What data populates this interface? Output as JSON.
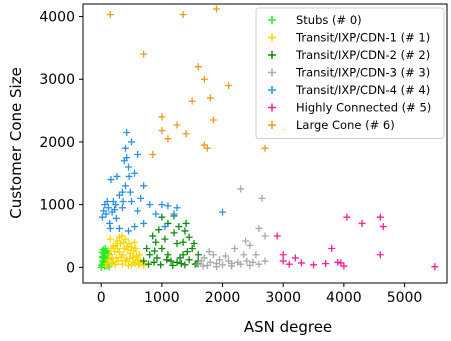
{
  "chart_data": {
    "type": "scatter",
    "xlabel": "ASN degree",
    "ylabel": "Customer Cone Size",
    "xlim": [
      -300,
      5700
    ],
    "ylim": [
      -250,
      4200
    ],
    "xticks": [
      0,
      1000,
      2000,
      3000,
      4000,
      5000
    ],
    "yticks": [
      0,
      1000,
      2000,
      3000,
      4000
    ],
    "legend_position": "top-right",
    "marker": "plus",
    "series": [
      {
        "name": "Stubs (# 0)",
        "color": "#22ee22",
        "points": [
          [
            0,
            0
          ],
          [
            10,
            30
          ],
          [
            20,
            50
          ],
          [
            25,
            100
          ],
          [
            30,
            150
          ],
          [
            40,
            80
          ],
          [
            50,
            200
          ],
          [
            60,
            120
          ],
          [
            70,
            40
          ],
          [
            80,
            250
          ],
          [
            90,
            180
          ],
          [
            100,
            60
          ],
          [
            110,
            130
          ],
          [
            120,
            220
          ],
          [
            130,
            10
          ],
          [
            20,
            170
          ],
          [
            45,
            230
          ],
          [
            75,
            90
          ],
          [
            95,
            20
          ],
          [
            105,
            260
          ],
          [
            35,
            280
          ],
          [
            65,
            300
          ],
          [
            15,
            240
          ],
          [
            55,
            20
          ],
          [
            85,
            140
          ]
        ]
      },
      {
        "name": "Transit/IXP/CDN-1 (# 1)",
        "color": "#ffd500",
        "points": [
          [
            80,
            20
          ],
          [
            100,
            60
          ],
          [
            120,
            120
          ],
          [
            140,
            200
          ],
          [
            160,
            300
          ],
          [
            180,
            150
          ],
          [
            200,
            80
          ],
          [
            220,
            250
          ],
          [
            240,
            350
          ],
          [
            260,
            420
          ],
          [
            280,
            100
          ],
          [
            300,
            480
          ],
          [
            320,
            380
          ],
          [
            340,
            500
          ],
          [
            360,
            200
          ],
          [
            380,
            300
          ],
          [
            400,
            450
          ],
          [
            420,
            130
          ],
          [
            440,
            280
          ],
          [
            460,
            380
          ],
          [
            480,
            220
          ],
          [
            500,
            320
          ],
          [
            520,
            160
          ],
          [
            540,
            260
          ],
          [
            560,
            60
          ],
          [
            580,
            180
          ],
          [
            600,
            120
          ],
          [
            620,
            40
          ],
          [
            650,
            100
          ],
          [
            680,
            70
          ],
          [
            700,
            30
          ],
          [
            150,
            450
          ],
          [
            250,
            150
          ],
          [
            350,
            50
          ],
          [
            450,
            30
          ],
          [
            550,
            400
          ],
          [
            200,
            330
          ],
          [
            300,
            240
          ],
          [
            400,
            100
          ],
          [
            500,
            40
          ],
          [
            170,
            60
          ],
          [
            270,
            300
          ],
          [
            370,
            400
          ],
          [
            470,
            140
          ],
          [
            570,
            300
          ],
          [
            230,
            40
          ],
          [
            330,
            160
          ],
          [
            430,
            330
          ],
          [
            530,
            80
          ],
          [
            630,
            200
          ]
        ]
      },
      {
        "name": "Transit/IXP/CDN-2 (# 2)",
        "color": "#0f8a0f",
        "points": [
          [
            700,
            100
          ],
          [
            750,
            300
          ],
          [
            800,
            200
          ],
          [
            850,
            500
          ],
          [
            870,
            80
          ],
          [
            900,
            400
          ],
          [
            920,
            150
          ],
          [
            950,
            600
          ],
          [
            1000,
            300
          ],
          [
            1050,
            450
          ],
          [
            1100,
            200
          ],
          [
            1150,
            100
          ],
          [
            1200,
            550
          ],
          [
            1250,
            380
          ],
          [
            1300,
            150
          ],
          [
            1320,
            60
          ],
          [
            1350,
            400
          ],
          [
            1400,
            700
          ],
          [
            1420,
            250
          ],
          [
            1450,
            120
          ],
          [
            1500,
            300
          ],
          [
            1550,
            50
          ],
          [
            1600,
            200
          ],
          [
            1100,
            700
          ],
          [
            1000,
            800
          ],
          [
            1200,
            820
          ],
          [
            1280,
            650
          ],
          [
            1380,
            580
          ],
          [
            1450,
            480
          ],
          [
            1530,
            380
          ],
          [
            780,
            50
          ],
          [
            980,
            40
          ],
          [
            1180,
            30
          ],
          [
            1380,
            40
          ],
          [
            1580,
            60
          ],
          [
            1080,
            120
          ],
          [
            880,
            260
          ],
          [
            1250,
            80
          ],
          [
            1600,
            100
          ],
          [
            1350,
            200
          ]
        ]
      },
      {
        "name": "Transit/IXP/CDN-3 (# 3)",
        "color": "#aaaaaa",
        "points": [
          [
            1600,
            50
          ],
          [
            1650,
            100
          ],
          [
            1700,
            150
          ],
          [
            1750,
            30
          ],
          [
            1800,
            80
          ],
          [
            1850,
            200
          ],
          [
            1900,
            60
          ],
          [
            1950,
            120
          ],
          [
            2000,
            40
          ],
          [
            2100,
            100
          ],
          [
            2150,
            60
          ],
          [
            2200,
            300
          ],
          [
            2250,
            80
          ],
          [
            2300,
            50
          ],
          [
            2350,
            200
          ],
          [
            2400,
            100
          ],
          [
            2450,
            30
          ],
          [
            2500,
            80
          ],
          [
            2550,
            200
          ],
          [
            2600,
            50
          ],
          [
            2700,
            100
          ],
          [
            2300,
            1250
          ],
          [
            2650,
            1100
          ],
          [
            2600,
            620
          ],
          [
            2700,
            500
          ],
          [
            2450,
            350
          ],
          [
            1780,
            250
          ],
          [
            2050,
            180
          ],
          [
            2380,
            420
          ],
          [
            2150,
            20
          ],
          [
            1680,
            20
          ],
          [
            1900,
            10
          ]
        ]
      },
      {
        "name": "Transit/IXP/CDN-4 (# 4)",
        "color": "#2f8fe6",
        "points": [
          [
            20,
            800
          ],
          [
            40,
            900
          ],
          [
            60,
            1000
          ],
          [
            80,
            850
          ],
          [
            100,
            1050
          ],
          [
            120,
            950
          ],
          [
            140,
            700
          ],
          [
            160,
            1400
          ],
          [
            180,
            880
          ],
          [
            200,
            1050
          ],
          [
            220,
            920
          ],
          [
            240,
            1000
          ],
          [
            260,
            1450
          ],
          [
            300,
            1150
          ],
          [
            350,
            1200
          ],
          [
            400,
            1300
          ],
          [
            420,
            1750
          ],
          [
            450,
            1600
          ],
          [
            500,
            2000
          ],
          [
            380,
            1700
          ],
          [
            550,
            1500
          ],
          [
            600,
            1800
          ],
          [
            650,
            1100
          ],
          [
            700,
            1300
          ],
          [
            550,
            650
          ],
          [
            450,
            580
          ],
          [
            300,
            620
          ],
          [
            500,
            1050
          ],
          [
            350,
            950
          ],
          [
            250,
            780
          ],
          [
            150,
            620
          ],
          [
            600,
            900
          ],
          [
            700,
            700
          ],
          [
            800,
            1000
          ],
          [
            900,
            850
          ],
          [
            1000,
            1000
          ],
          [
            1100,
            980
          ],
          [
            1200,
            850
          ],
          [
            1250,
            950
          ],
          [
            2000,
            880
          ],
          [
            1050,
            650
          ],
          [
            480,
            1200
          ],
          [
            360,
            1050
          ],
          [
            460,
            1450
          ],
          [
            400,
            1900
          ],
          [
            420,
            2150
          ]
        ]
      },
      {
        "name": "Highly Connected (# 5)",
        "color": "#ee2299",
        "points": [
          [
            2900,
            500
          ],
          [
            3000,
            200
          ],
          [
            3100,
            50
          ],
          [
            3200,
            150
          ],
          [
            3300,
            70
          ],
          [
            3500,
            40
          ],
          [
            3700,
            60
          ],
          [
            3900,
            80
          ],
          [
            4000,
            20
          ],
          [
            4050,
            800
          ],
          [
            4300,
            700
          ],
          [
            4600,
            800
          ],
          [
            4650,
            650
          ],
          [
            4600,
            200
          ],
          [
            5500,
            10
          ],
          [
            3800,
            300
          ],
          [
            3950,
            70
          ],
          [
            3000,
            100
          ]
        ]
      },
      {
        "name": "Large Cone (# 6)",
        "color": "#ee9922",
        "points": [
          [
            150,
            4030
          ],
          [
            700,
            3400
          ],
          [
            1350,
            4030
          ],
          [
            1700,
            3000
          ],
          [
            1800,
            2700
          ],
          [
            1900,
            4120
          ],
          [
            2100,
            2900
          ],
          [
            1250,
            2270
          ],
          [
            1500,
            2650
          ],
          [
            1600,
            3200
          ],
          [
            1400,
            2130
          ],
          [
            1700,
            1950
          ],
          [
            1750,
            1900
          ],
          [
            2700,
            1900
          ],
          [
            3000,
            2200
          ],
          [
            1850,
            2350
          ],
          [
            1000,
            2400
          ],
          [
            1100,
            2050
          ],
          [
            1000,
            2180
          ],
          [
            850,
            1800
          ]
        ]
      }
    ]
  }
}
